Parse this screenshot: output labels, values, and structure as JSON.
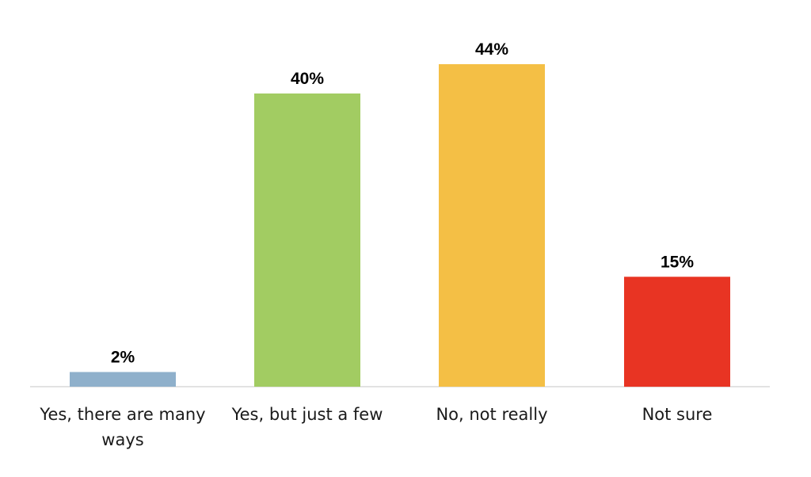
{
  "chart_data": {
    "type": "bar",
    "title": "",
    "xlabel": "",
    "ylabel": "",
    "categories": [
      [
        "Yes, there are many",
        "ways"
      ],
      [
        "Yes, but just a few"
      ],
      [
        "No, not really"
      ],
      [
        "Not sure"
      ]
    ],
    "values": [
      2,
      40,
      44,
      15
    ],
    "value_labels": [
      "2%",
      "40%",
      "44%",
      "15%"
    ],
    "colors": [
      "#8fb0cb",
      "#a2cc62",
      "#f4bf45",
      "#e83423"
    ],
    "ylim": [
      0,
      44
    ],
    "grid": false,
    "legend": "none"
  }
}
